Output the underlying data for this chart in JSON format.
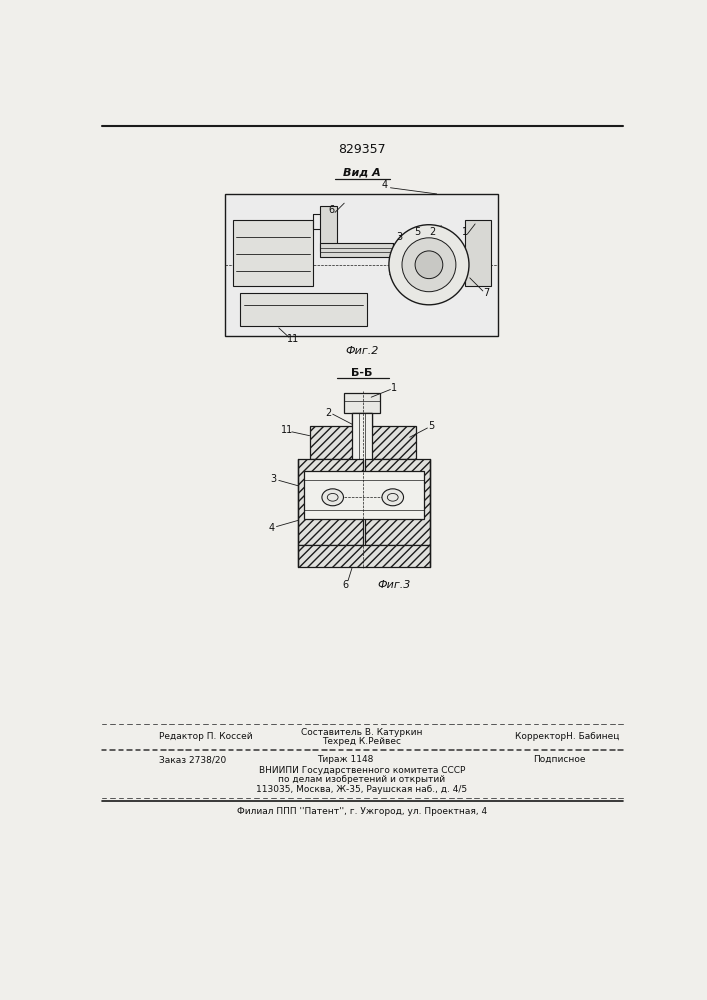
{
  "patent_number": "829357",
  "view_label": "Вид А",
  "section_label": "Б-Б",
  "fig2_label": "Фиг.2",
  "fig3_label": "Фиг.3",
  "footer_line1_left": "Редактор П. Коссей",
  "footer_line1_center1": "Составитель В. Катуркин",
  "footer_line1_center2": "Техред К.Рейвес",
  "footer_line1_right": "КорректорН. Бабинец",
  "footer_line2_left": "Заказ 2738/20",
  "footer_line2_center": "Тираж 1148",
  "footer_line2_right": "Подписное",
  "footer_line3": "ВНИИПИ Государственного комитета СССР",
  "footer_line4": "по делам изобретений и открытий",
  "footer_line5": "113035, Москва, Ж-35, Раушская наб., д. 4/5",
  "footer_last": "Филиал ППП ''Патент'', г. Ужгород, ул. Проектная, 4",
  "bg_color": "#f0efeb",
  "line_color": "#1a1a1a",
  "hatch_color": "#333333"
}
